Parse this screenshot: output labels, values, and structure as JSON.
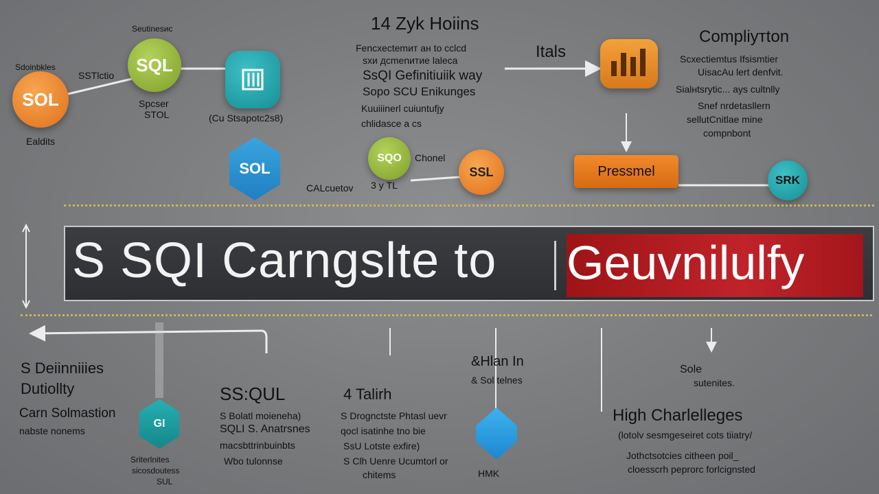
{
  "header": {
    "title": "14 Zуk Hoiins",
    "text_lines": [
      "Fеnсхеctemит ан tо сclсd",
      "sхи дсmеnитие lаlесa",
      "SѕQI Gefinitiuiik way",
      "Sopo SCU Enikunges",
      "Kuuiiinerl cuiuntufjy",
      "chlidascе а сs"
    ],
    "itals": "Itals"
  },
  "top_left": {
    "sol_label": "SOL",
    "sol_caption": "Ealdits",
    "sol_top_label": "Sdoinbkles",
    "sql_label": "SQL",
    "sql_top_label": "Seutinesис",
    "edge_label": "SSTlctio",
    "sql_caption_1": "Spcser",
    "sql_caption_2": "STOL",
    "db_caption": "(Cu Stsарotc2s8)"
  },
  "top_right": {
    "title": "Compliyтton",
    "lines": [
      "Scхеctiemtus Ifsismtier",
      "UisacАu lеrt dеnfvit.",
      "Siаlнtsrytic... ауs cultnlly",
      "Snef nrdetаsllern",
      "sellutCnitlае mine",
      "compnbont"
    ]
  },
  "middle": {
    "sol_label": "SOL",
    "sqo_label": "SQO",
    "ssl_label": "SSL",
    "srk_label": "SRK",
    "channel": "Chonel",
    "calc": "CALcuetov",
    "tl": "3 у TL",
    "pressmel": "Pressmel"
  },
  "banner": {
    "main_text": "S SQI Carngslte to",
    "red_text": "Geuvnilulfу"
  },
  "bottom": {
    "left_title_1": "S Deiinniiies",
    "left_title_2": "Dutiollty",
    "left_sub_1": "Carn Solmastion",
    "left_sub_2": "nabste nonems",
    "hex_label": "GI",
    "hex_captions": [
      "Sriterlnitеs",
      "sicosdoutess",
      "SUL"
    ],
    "ssql_title": "SS:QUL",
    "ssql_lines": [
      "S Bolatl moieneha)",
      "SQLI S. Anatrsnes",
      "mасsbttrinbuinbts",
      "Wbo tulonnse"
    ],
    "talirh_title": "4 Talirh",
    "talirh_lines": [
      "S Drognctste Phtasl uevr",
      "qoсl isatinhe tno bie",
      "SѕU Lotste exfire)",
      "S Clh Uenre Ucumtorl or",
      "chitems"
    ],
    "edlan_title": "&Hlan In",
    "edlan_sub": "& Sol tеlnes",
    "hmk": "HMK",
    "sole": "Sole",
    "sole_sub": "sutenites.",
    "challenges_title": "High Charlelleges",
    "challenges_lines": [
      "(lotolv sesmgeseiret cots tiiatrу/",
      "Jothctsotcies citheen poil_",
      "cloesscrh pеprorc forlcignsted"
    ]
  },
  "colors": {
    "orange": "#f08a2c",
    "green": "#8fb03a",
    "teal": "#1fa6ae",
    "blue": "#2a8ed1",
    "red": "#c0232a",
    "banner": "#35363a"
  }
}
